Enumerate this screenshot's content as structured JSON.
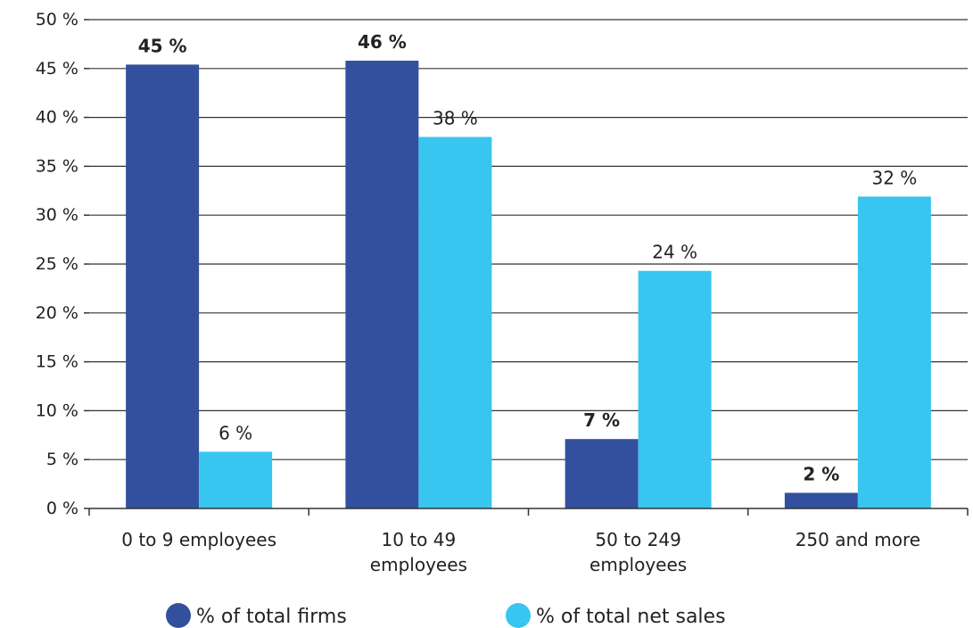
{
  "chart_data": {
    "type": "bar",
    "categories": [
      [
        "0 to 9 employees"
      ],
      [
        "10 to 49",
        "employees"
      ],
      [
        "50 to 249",
        "employees"
      ],
      [
        "250 and more"
      ]
    ],
    "series": [
      {
        "name": "% of total firms",
        "color": "#33509F",
        "values": [
          45.4,
          45.8,
          7.1,
          1.6
        ],
        "labels": [
          "45 %",
          "46 %",
          "7 %",
          "2 %"
        ],
        "label_weight": "bold"
      },
      {
        "name": "% of total net sales",
        "color": "#38C5F0",
        "values": [
          5.8,
          38.0,
          24.3,
          31.9
        ],
        "labels": [
          "6 %",
          "38 %",
          "24 %",
          "32 %"
        ],
        "label_weight": "normal"
      }
    ],
    "y_ticks": [
      "0 %",
      "5 %",
      "10 %",
      "15 %",
      "20 %",
      "25 %",
      "30 %",
      "35 %",
      "40 %",
      "45 %",
      "50 %"
    ],
    "ylim": [
      0,
      50
    ],
    "grid": true,
    "legend_position": "bottom"
  }
}
